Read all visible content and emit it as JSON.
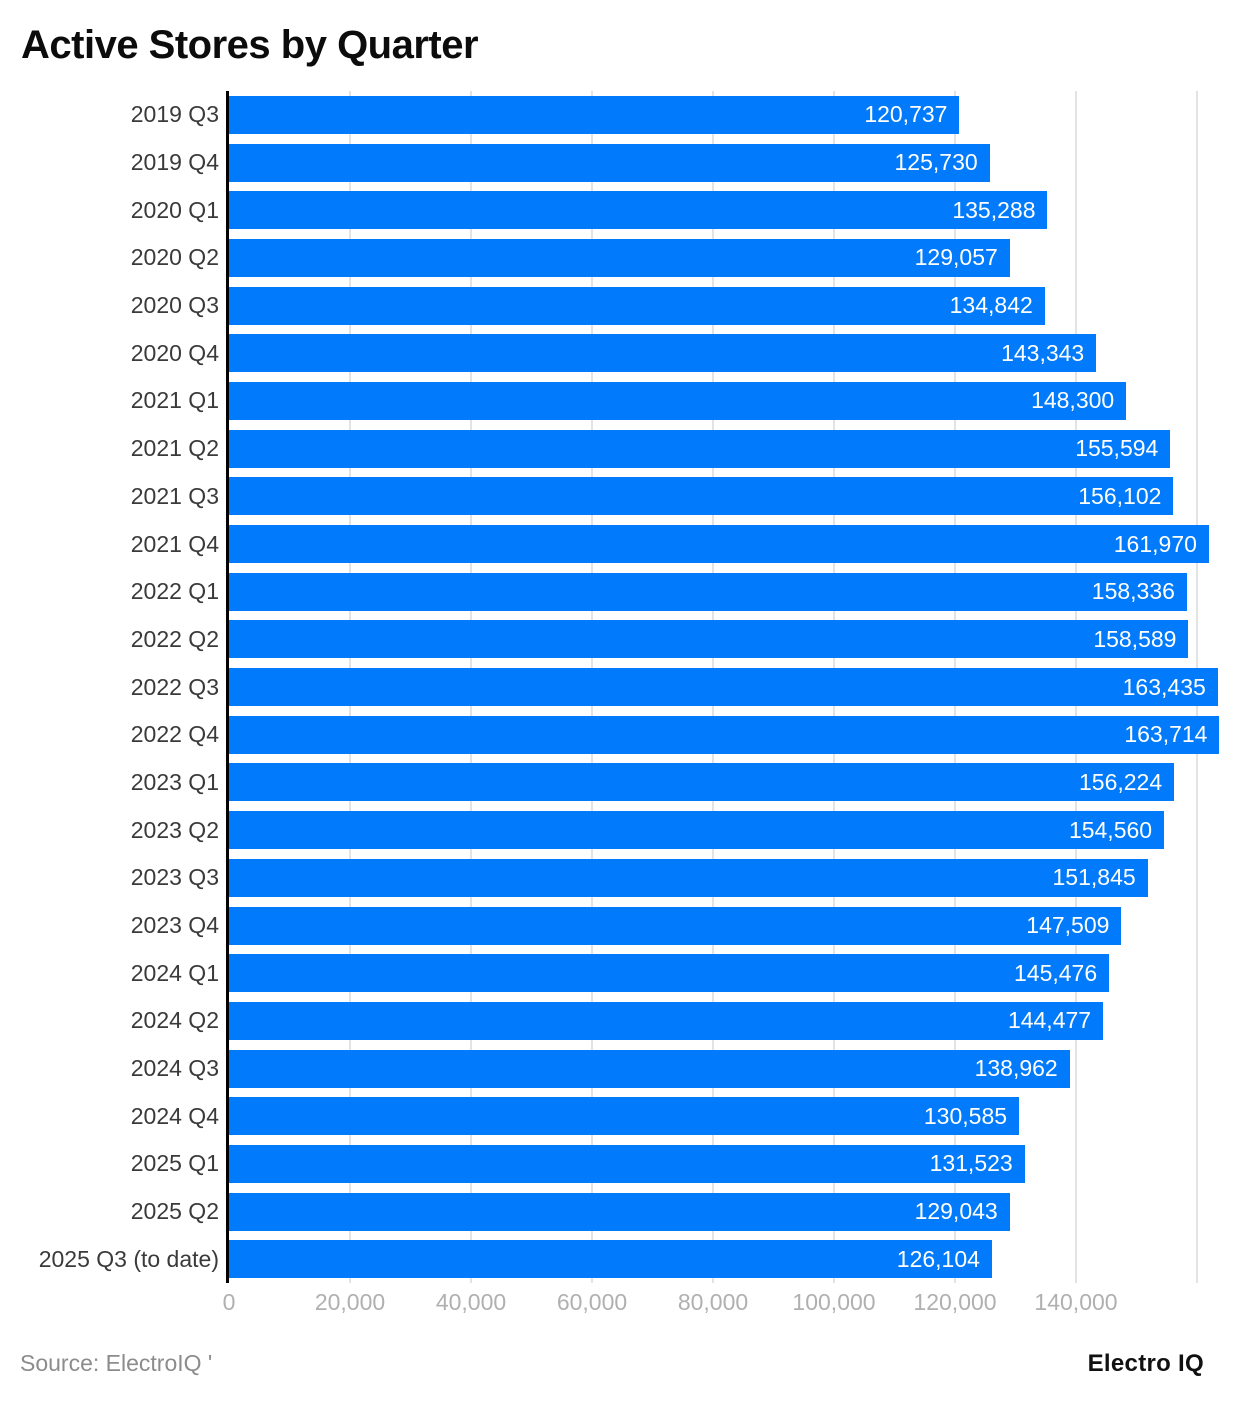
{
  "title": "Active Stores by Quarter",
  "footer": {
    "source": "Source: ElectroIQ '",
    "brand": "Electro IQ"
  },
  "colors": {
    "bar": "#017BFB",
    "bar_value_text": "#FFFFFF",
    "axis_line": "#000000",
    "gridline": "#E3E3E3",
    "tick_label": "#B0B0B0",
    "category_label": "#3A3A3A",
    "title_text": "#0C0C0C",
    "source_text": "#8C8C8C"
  },
  "chart_data": {
    "type": "bar",
    "orientation": "horizontal",
    "title": "Active Stores by Quarter",
    "xlabel": "",
    "ylabel": "",
    "xlim": [
      0,
      160000
    ],
    "grid": "vertical-gridlines-only",
    "legend": "none",
    "value_labels_position": "inside-end",
    "categories": [
      "2019 Q3",
      "2019 Q4",
      "2020 Q1",
      "2020 Q2",
      "2020 Q3",
      "2020 Q4",
      "2021 Q1",
      "2021 Q2",
      "2021 Q3",
      "2021 Q4",
      "2022 Q1",
      "2022 Q2",
      "2022 Q3",
      "2022 Q4",
      "2023 Q1",
      "2023 Q2",
      "2023 Q3",
      "2023 Q4",
      "2024 Q1",
      "2024 Q2",
      "2024 Q3",
      "2024 Q4",
      "2025 Q1",
      "2025 Q2",
      "2025 Q3 (to date)"
    ],
    "values": [
      120737,
      125730,
      135288,
      129057,
      134842,
      143343,
      148300,
      155594,
      156102,
      161970,
      158336,
      158589,
      163435,
      163714,
      156224,
      154560,
      151845,
      147509,
      145476,
      144477,
      138962,
      130585,
      131523,
      129043,
      126104
    ],
    "value_labels": [
      "120,737",
      "125,730",
      "135,288",
      "129,057",
      "134,842",
      "143,343",
      "148,300",
      "155,594",
      "156,102",
      "161,970",
      "158,336",
      "158,589",
      "163,435",
      "163,714",
      "156,224",
      "154,560",
      "151,845",
      "147,509",
      "145,476",
      "144,477",
      "138,962",
      "130,585",
      "131,523",
      "129,043",
      "126,104"
    ],
    "x_ticks": [
      0,
      20000,
      40000,
      60000,
      80000,
      100000,
      120000,
      140000
    ],
    "x_tick_labels": [
      "0",
      "20,000",
      "40,000",
      "60,000",
      "80,000",
      "100,000",
      "120,000",
      "140,000"
    ],
    "gridline_values": [
      20000,
      40000,
      60000,
      80000,
      100000,
      120000,
      140000,
      160000
    ]
  }
}
